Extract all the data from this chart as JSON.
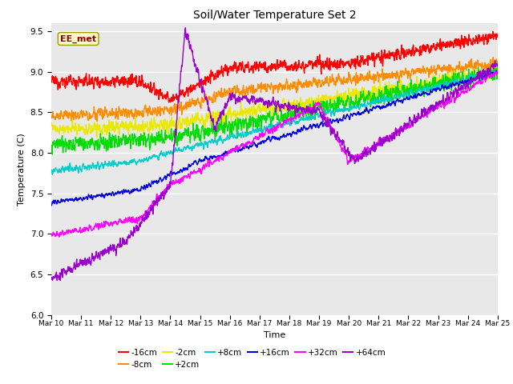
{
  "title": "Soil/Water Temperature Set 2",
  "xlabel": "Time",
  "ylabel": "Temperature (C)",
  "ylim": [
    6.0,
    9.6
  ],
  "yticks": [
    6.0,
    6.5,
    7.0,
    7.5,
    8.0,
    8.5,
    9.0,
    9.5
  ],
  "xtick_labels": [
    "Mar 10",
    "Mar 11",
    "Mar 12",
    "Mar 13",
    "Mar 14",
    "Mar 15",
    "Mar 16",
    "Mar 17",
    "Mar 18",
    "Mar 19",
    "Mar 20",
    "Mar 21",
    "Mar 22",
    "Mar 23",
    "Mar 24",
    "Mar 25"
  ],
  "annotation": "EE_met",
  "series": {
    "-16cm": {
      "color": "#ff0000",
      "lw": 1.0
    },
    "-8cm": {
      "color": "#ff8c00",
      "lw": 1.0
    },
    "-2cm": {
      "color": "#e8e800",
      "lw": 1.0
    },
    "+2cm": {
      "color": "#00dd00",
      "lw": 1.0
    },
    "+8cm": {
      "color": "#00cccc",
      "lw": 1.0
    },
    "+16cm": {
      "color": "#0000dd",
      "lw": 1.0
    },
    "+32cm": {
      "color": "#ff00ff",
      "lw": 1.0
    },
    "+64cm": {
      "color": "#9900cc",
      "lw": 1.0
    }
  },
  "bg_color": "#e8e8e8",
  "fig_bg": "#ffffff",
  "legend_order": [
    "-16cm",
    "-8cm",
    "-2cm",
    "+2cm",
    "+8cm",
    "+16cm",
    "+32cm",
    "+64cm"
  ]
}
